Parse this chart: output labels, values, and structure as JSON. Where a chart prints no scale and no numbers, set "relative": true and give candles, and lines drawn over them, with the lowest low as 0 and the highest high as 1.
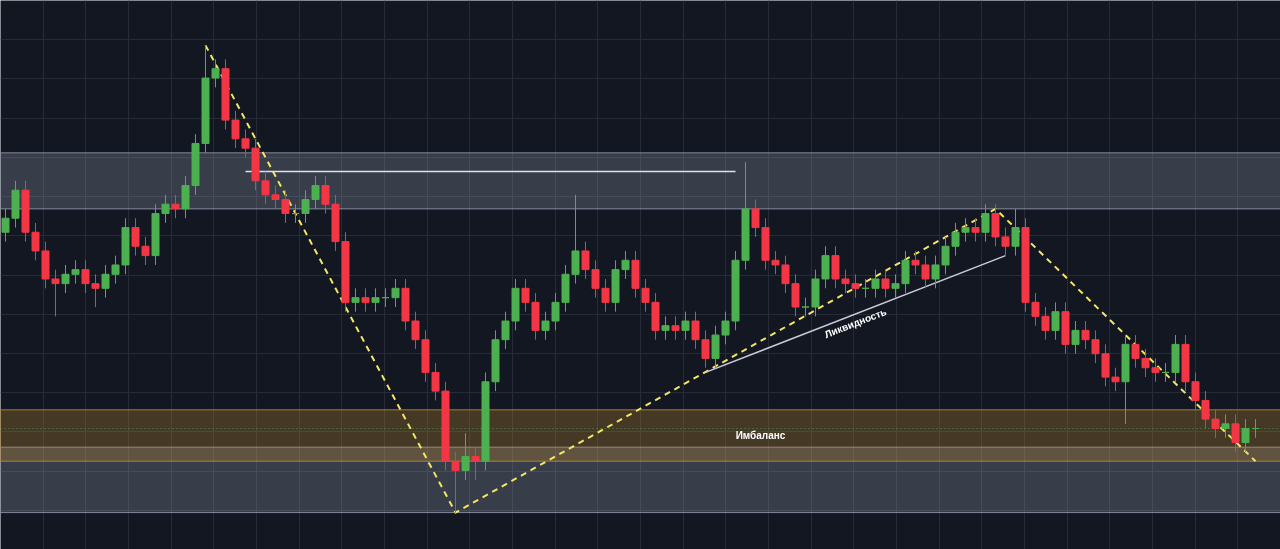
{
  "chart_data": {
    "type": "candlestick",
    "relative": true,
    "grid": true,
    "categories": [
      null,
      null,
      null,
      null,
      null,
      null,
      null,
      null,
      null,
      null,
      null,
      null,
      null,
      null,
      null,
      null,
      null,
      null,
      null,
      null,
      null,
      null,
      null,
      null,
      null,
      null,
      null,
      null,
      null,
      null,
      null,
      null,
      null,
      null,
      null,
      null,
      null,
      null,
      null,
      null,
      null,
      null,
      null,
      null,
      null,
      null,
      null,
      null,
      null,
      null,
      null,
      null,
      null,
      null,
      null,
      null,
      null,
      null,
      null,
      null,
      null,
      null,
      null,
      null,
      null,
      null,
      null,
      null,
      null,
      null,
      null,
      null,
      null,
      null,
      null,
      null,
      null,
      null,
      null,
      null,
      null,
      null,
      null,
      null,
      null,
      null,
      null,
      null,
      null,
      null,
      null,
      null,
      null,
      null,
      null,
      null,
      null,
      null,
      null,
      null,
      null,
      null,
      null,
      null,
      null,
      null,
      null,
      null,
      null,
      null,
      null,
      null,
      null,
      null,
      null,
      null,
      null,
      null,
      null,
      null,
      null,
      null,
      null,
      null,
      null,
      null
    ],
    "colors": [
      "#4caf50",
      "#4caf50",
      "#f23645",
      "#f23645",
      "#f23645",
      "#f23645",
      "#4caf50",
      "#4caf50",
      "#f23645",
      "#f23645",
      "#4caf50",
      "#4caf50",
      "#4caf50",
      "#f23645",
      "#f23645",
      "#4caf50",
      "#4caf50",
      "#f23645",
      "#4caf50",
      "#4caf50",
      "#4caf50",
      "#4caf50",
      "#f23645",
      "#f23645",
      "#f23645",
      "#f23645",
      "#f23645",
      "#f23645",
      "#f23645",
      "#4caf50",
      "#4caf50",
      "#4caf50",
      "#f23645",
      "#f23645",
      "#f23645",
      "#4caf50",
      "#f23645",
      "#4caf50",
      "#4caf50",
      "#4caf50",
      "#f23645",
      "#f23645",
      "#f23645",
      "#f23645",
      "#f23645",
      "#f23645",
      "#4caf50",
      "#f23645",
      "#4caf50",
      "#4caf50",
      "#4caf50",
      "#4caf50",
      "#f23645",
      "#f23645",
      "#4caf50",
      "#4caf50",
      "#4caf50",
      "#4caf50",
      "#f23645",
      "#f23645",
      "#f23645",
      "#4caf50",
      "#4caf50",
      "#f23645",
      "#f23645",
      "#f23645",
      "#4caf50",
      "#f23645",
      "#4caf50",
      "#f23645",
      "#f23645",
      "#4caf50",
      "#4caf50",
      "#4caf50",
      "#4caf50",
      "#f23645",
      "#f23645",
      "#f23645",
      "#f23645",
      "#f23645",
      "#4caf50",
      "#4caf50",
      "#4caf50",
      "#f23645",
      "#f23645",
      "#f23645",
      "#4caf50",
      "#4caf50",
      "#f23645",
      "#4caf50",
      "#4caf50",
      "#f23645",
      "#f23645",
      "#4caf50",
      "#4caf50",
      "#4caf50",
      "#4caf50",
      "#f23645",
      "#4caf50",
      "#f23645",
      "#f23645",
      "#4caf50",
      "#f23645",
      "#f23645",
      "#f23645",
      "#4caf50",
      "#f23645",
      "#4caf50",
      "#f23645",
      "#f23645",
      "#f23645",
      "#f23645",
      "#4caf50",
      "#f23645",
      "#f23645",
      "#f23645",
      "#4caf50",
      "#4caf50",
      "#f23645",
      "#f23645",
      "#f23645",
      "#f23645",
      "#4caf50",
      "#f23645",
      "#4caf50",
      "#4caf50"
    ],
    "ohlc": [
      [
        0.6,
        0.65,
        0.58,
        0.63
      ],
      [
        0.63,
        0.71,
        0.61,
        0.69
      ],
      [
        0.69,
        0.71,
        0.58,
        0.6
      ],
      [
        0.6,
        0.62,
        0.54,
        0.56
      ],
      [
        0.56,
        0.58,
        0.48,
        0.5
      ],
      [
        0.5,
        0.52,
        0.42,
        0.49
      ],
      [
        0.49,
        0.53,
        0.47,
        0.51
      ],
      [
        0.51,
        0.54,
        0.49,
        0.52
      ],
      [
        0.52,
        0.54,
        0.47,
        0.49
      ],
      [
        0.49,
        0.51,
        0.44,
        0.48
      ],
      [
        0.48,
        0.53,
        0.46,
        0.51
      ],
      [
        0.51,
        0.55,
        0.49,
        0.53
      ],
      [
        0.53,
        0.63,
        0.51,
        0.61
      ],
      [
        0.61,
        0.63,
        0.55,
        0.57
      ],
      [
        0.57,
        0.59,
        0.53,
        0.55
      ],
      [
        0.55,
        0.66,
        0.53,
        0.64
      ],
      [
        0.64,
        0.68,
        0.62,
        0.66
      ],
      [
        0.66,
        0.68,
        0.63,
        0.65
      ],
      [
        0.65,
        0.72,
        0.63,
        0.7
      ],
      [
        0.7,
        0.81,
        0.68,
        0.79
      ],
      [
        0.79,
        1.0,
        0.77,
        0.93
      ],
      [
        0.93,
        0.97,
        0.91,
        0.95
      ],
      [
        0.95,
        0.97,
        0.82,
        0.84
      ],
      [
        0.84,
        0.86,
        0.78,
        0.8
      ],
      [
        0.8,
        0.82,
        0.76,
        0.78
      ],
      [
        0.78,
        0.8,
        0.69,
        0.71
      ],
      [
        0.71,
        0.73,
        0.66,
        0.68
      ],
      [
        0.68,
        0.7,
        0.65,
        0.67
      ],
      [
        0.67,
        0.69,
        0.62,
        0.64
      ],
      [
        0.64,
        0.66,
        0.62,
        0.64
      ],
      [
        0.64,
        0.69,
        0.62,
        0.67
      ],
      [
        0.67,
        0.72,
        0.65,
        0.7
      ],
      [
        0.7,
        0.72,
        0.64,
        0.66
      ],
      [
        0.66,
        0.68,
        0.56,
        0.58
      ],
      [
        0.58,
        0.6,
        0.43,
        0.45
      ],
      [
        0.45,
        0.48,
        0.43,
        0.46
      ],
      [
        0.46,
        0.48,
        0.43,
        0.45
      ],
      [
        0.45,
        0.48,
        0.43,
        0.46
      ],
      [
        0.46,
        0.48,
        0.44,
        0.46
      ],
      [
        0.46,
        0.5,
        0.44,
        0.48
      ],
      [
        0.48,
        0.5,
        0.39,
        0.41
      ],
      [
        0.41,
        0.43,
        0.35,
        0.37
      ],
      [
        0.37,
        0.39,
        0.28,
        0.3
      ],
      [
        0.3,
        0.32,
        0.24,
        0.26
      ],
      [
        0.26,
        0.28,
        0.09,
        0.11
      ],
      [
        0.11,
        0.13,
        0.0,
        0.09
      ],
      [
        0.09,
        0.17,
        0.07,
        0.12
      ],
      [
        0.12,
        0.14,
        0.07,
        0.11
      ],
      [
        0.11,
        0.3,
        0.09,
        0.28
      ],
      [
        0.28,
        0.39,
        0.26,
        0.37
      ],
      [
        0.37,
        0.43,
        0.35,
        0.41
      ],
      [
        0.41,
        0.5,
        0.39,
        0.48
      ],
      [
        0.48,
        0.5,
        0.43,
        0.45
      ],
      [
        0.45,
        0.47,
        0.37,
        0.39
      ],
      [
        0.39,
        0.43,
        0.37,
        0.41
      ],
      [
        0.41,
        0.47,
        0.39,
        0.45
      ],
      [
        0.45,
        0.53,
        0.43,
        0.51
      ],
      [
        0.51,
        0.68,
        0.49,
        0.56
      ],
      [
        0.56,
        0.58,
        0.5,
        0.52
      ],
      [
        0.52,
        0.54,
        0.46,
        0.48
      ],
      [
        0.48,
        0.5,
        0.43,
        0.45
      ],
      [
        0.45,
        0.54,
        0.43,
        0.52
      ],
      [
        0.52,
        0.56,
        0.5,
        0.54
      ],
      [
        0.54,
        0.56,
        0.46,
        0.48
      ],
      [
        0.48,
        0.5,
        0.43,
        0.45
      ],
      [
        0.45,
        0.47,
        0.37,
        0.39
      ],
      [
        0.39,
        0.42,
        0.37,
        0.4
      ],
      [
        0.4,
        0.42,
        0.37,
        0.39
      ],
      [
        0.39,
        0.43,
        0.37,
        0.41
      ],
      [
        0.41,
        0.43,
        0.35,
        0.37
      ],
      [
        0.37,
        0.39,
        0.31,
        0.33
      ],
      [
        0.33,
        0.4,
        0.31,
        0.38
      ],
      [
        0.38,
        0.43,
        0.36,
        0.41
      ],
      [
        0.41,
        0.56,
        0.39,
        0.54
      ],
      [
        0.54,
        0.75,
        0.52,
        0.65
      ],
      [
        0.65,
        0.67,
        0.59,
        0.61
      ],
      [
        0.61,
        0.63,
        0.52,
        0.54
      ],
      [
        0.54,
        0.56,
        0.51,
        0.53
      ],
      [
        0.53,
        0.55,
        0.47,
        0.49
      ],
      [
        0.49,
        0.51,
        0.42,
        0.44
      ],
      [
        0.44,
        0.46,
        0.42,
        0.44
      ],
      [
        0.44,
        0.52,
        0.42,
        0.5
      ],
      [
        0.5,
        0.57,
        0.48,
        0.55
      ],
      [
        0.55,
        0.57,
        0.48,
        0.5
      ],
      [
        0.5,
        0.52,
        0.47,
        0.49
      ],
      [
        0.49,
        0.51,
        0.46,
        0.48
      ],
      [
        0.48,
        0.5,
        0.46,
        0.48
      ],
      [
        0.48,
        0.52,
        0.46,
        0.5
      ],
      [
        0.5,
        0.52,
        0.46,
        0.48
      ],
      [
        0.48,
        0.51,
        0.46,
        0.49
      ],
      [
        0.49,
        0.56,
        0.47,
        0.54
      ],
      [
        0.54,
        0.56,
        0.51,
        0.53
      ],
      [
        0.53,
        0.55,
        0.48,
        0.5
      ],
      [
        0.5,
        0.55,
        0.48,
        0.53
      ],
      [
        0.53,
        0.59,
        0.51,
        0.57
      ],
      [
        0.57,
        0.62,
        0.55,
        0.6
      ],
      [
        0.6,
        0.63,
        0.58,
        0.61
      ],
      [
        0.61,
        0.63,
        0.58,
        0.6
      ],
      [
        0.6,
        0.66,
        0.58,
        0.64
      ],
      [
        0.64,
        0.66,
        0.57,
        0.59
      ],
      [
        0.59,
        0.61,
        0.55,
        0.57
      ],
      [
        0.57,
        0.65,
        0.55,
        0.61
      ],
      [
        0.61,
        0.63,
        0.43,
        0.45
      ],
      [
        0.45,
        0.47,
        0.4,
        0.42
      ],
      [
        0.42,
        0.44,
        0.37,
        0.39
      ],
      [
        0.39,
        0.45,
        0.37,
        0.43
      ],
      [
        0.43,
        0.45,
        0.34,
        0.36
      ],
      [
        0.36,
        0.41,
        0.34,
        0.39
      ],
      [
        0.39,
        0.41,
        0.35,
        0.37
      ],
      [
        0.37,
        0.39,
        0.32,
        0.34
      ],
      [
        0.34,
        0.36,
        0.27,
        0.29
      ],
      [
        0.29,
        0.31,
        0.26,
        0.28
      ],
      [
        0.28,
        0.38,
        0.19,
        0.36
      ],
      [
        0.36,
        0.38,
        0.31,
        0.33
      ],
      [
        0.33,
        0.35,
        0.29,
        0.31
      ],
      [
        0.31,
        0.33,
        0.28,
        0.3
      ],
      [
        0.3,
        0.32,
        0.28,
        0.3
      ],
      [
        0.3,
        0.38,
        0.28,
        0.36
      ],
      [
        0.36,
        0.38,
        0.26,
        0.28
      ],
      [
        0.28,
        0.3,
        0.22,
        0.24
      ],
      [
        0.24,
        0.26,
        0.18,
        0.2
      ],
      [
        0.2,
        0.22,
        0.16,
        0.18
      ],
      [
        0.18,
        0.21,
        0.16,
        0.19
      ],
      [
        0.19,
        0.21,
        0.13,
        0.15
      ],
      [
        0.15,
        0.2,
        0.13,
        0.18
      ],
      [
        0.18,
        0.2,
        0.16,
        0.18
      ]
    ],
    "series": [
      {
        "type": "line",
        "color": "#f5e663",
        "line_style": "dashed",
        "values": [
          null,
          null,
          null,
          null,
          null,
          null,
          null,
          null,
          null,
          null,
          null,
          null,
          null,
          null,
          null,
          null,
          null,
          null,
          null,
          null,
          1.0,
          null,
          null,
          null,
          null,
          null,
          null,
          null,
          null,
          null,
          null,
          null,
          null,
          null,
          null,
          null,
          null,
          null,
          null,
          null,
          null,
          null,
          null,
          null,
          null,
          0.0,
          null,
          null,
          null,
          null,
          null,
          null,
          null,
          null,
          null,
          null,
          null,
          null,
          null,
          null,
          null,
          null,
          null,
          null,
          null,
          null,
          null,
          null,
          null,
          null,
          null,
          null,
          null,
          null,
          null,
          null,
          null,
          null,
          null,
          null,
          null,
          null,
          null,
          null,
          null,
          null,
          null,
          null,
          null,
          null,
          null,
          null,
          null,
          null,
          null,
          null,
          null,
          null,
          null,
          0.65,
          null,
          null,
          null,
          null,
          null,
          null,
          null,
          null,
          null,
          null,
          null,
          null,
          null,
          null,
          null,
          null,
          null,
          null,
          null,
          null,
          null,
          null,
          null,
          null,
          null,
          0.11
        ]
      },
      {
        "type": "line",
        "color": "#e0e3eb",
        "line_style": "solid",
        "values": [
          null,
          null,
          null,
          null,
          null,
          null,
          null,
          null,
          null,
          null,
          null,
          null,
          null,
          null,
          null,
          null,
          null,
          null,
          null,
          null,
          null,
          null,
          null,
          null,
          0.73,
          null,
          null,
          null,
          null,
          null,
          null,
          null,
          null,
          null,
          null,
          null,
          null,
          null,
          null,
          null,
          null,
          null,
          null,
          null,
          null,
          null,
          null,
          null,
          null,
          null,
          null,
          null,
          null,
          null,
          null,
          null,
          null,
          null,
          null,
          null,
          null,
          null,
          null,
          null,
          null,
          null,
          null,
          null,
          null,
          null,
          null,
          null,
          null,
          0.73,
          null,
          null,
          null,
          null,
          null,
          null,
          null,
          null,
          null,
          null,
          null,
          null,
          null,
          null,
          null,
          null,
          null,
          null,
          null,
          null,
          null,
          null,
          null,
          null,
          null,
          null,
          null,
          null,
          null,
          null,
          null,
          null,
          null,
          null,
          null,
          null,
          null,
          null,
          null,
          null,
          null,
          null,
          null,
          null,
          null,
          null,
          null,
          null,
          null,
          null,
          null,
          null
        ]
      },
      {
        "type": "line",
        "name": "Ликвидность",
        "color": "#c8ccd8",
        "line_style": "solid",
        "values": [
          null,
          null,
          null,
          null,
          null,
          null,
          null,
          null,
          null,
          null,
          null,
          null,
          null,
          null,
          null,
          null,
          null,
          null,
          null,
          null,
          null,
          null,
          null,
          null,
          null,
          null,
          null,
          null,
          null,
          null,
          null,
          null,
          null,
          null,
          null,
          null,
          null,
          null,
          null,
          null,
          null,
          null,
          null,
          null,
          null,
          null,
          null,
          null,
          null,
          null,
          null,
          null,
          null,
          null,
          null,
          null,
          null,
          null,
          null,
          null,
          null,
          null,
          null,
          null,
          null,
          null,
          null,
          null,
          null,
          null,
          0.3,
          null,
          null,
          null,
          null,
          null,
          null,
          null,
          null,
          null,
          null,
          null,
          null,
          null,
          null,
          null,
          null,
          null,
          null,
          null,
          null,
          null,
          null,
          null,
          null,
          null,
          null,
          null,
          null,
          null,
          0.55,
          null,
          null,
          null,
          null,
          null,
          null,
          null,
          null,
          null,
          null,
          null,
          null,
          null,
          null,
          null,
          null,
          null,
          null,
          null,
          null,
          null,
          null,
          null,
          null,
          null
        ]
      }
    ],
    "bands": [
      {
        "axis": "y",
        "from": 0.65,
        "to": 0.77,
        "color": "#9aa0b4"
      },
      {
        "axis": "y",
        "from": 0.0,
        "to": 0.14,
        "color": "#9aa0b4"
      },
      {
        "axis": "y",
        "from": 0.11,
        "to": 0.22,
        "color": "#c8902a",
        "label": "Имбаланс"
      }
    ],
    "ref_lines": [
      {
        "axis": "y",
        "value": 0.18,
        "color": "#3fa34d",
        "line_style": "dotted"
      }
    ]
  }
}
